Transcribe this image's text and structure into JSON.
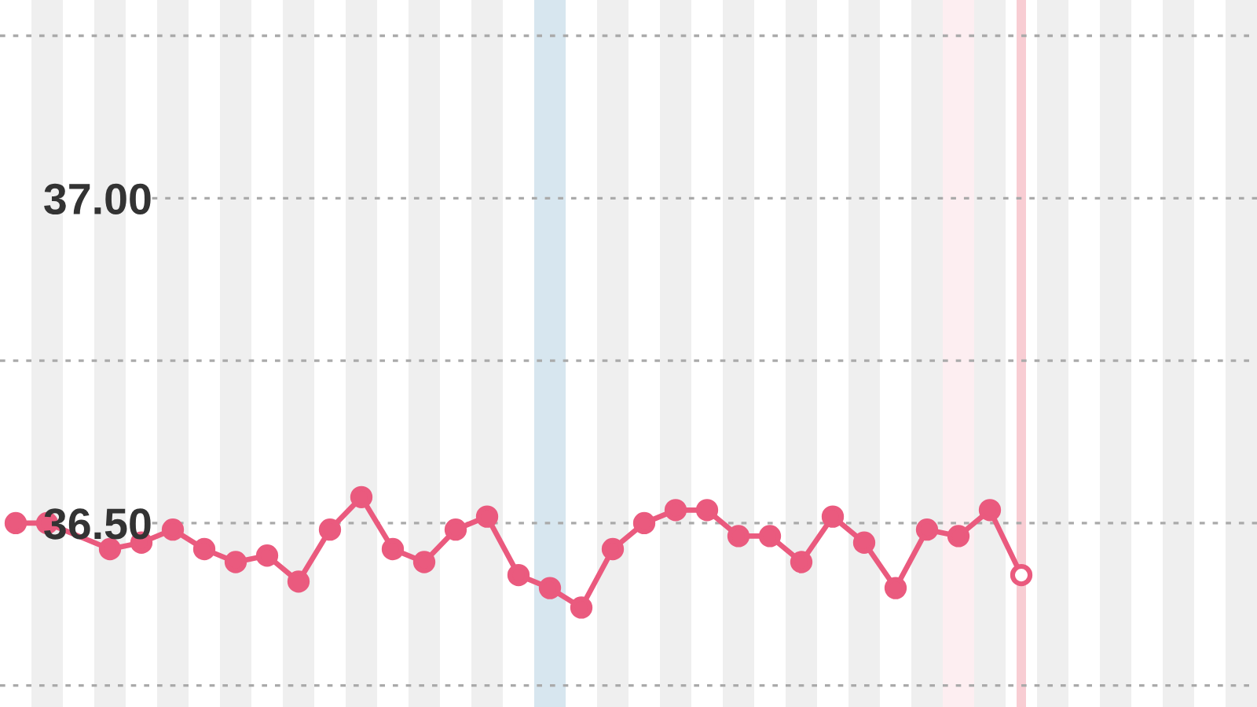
{
  "chart_data": {
    "type": "line",
    "categories": [
      null,
      null,
      null,
      null,
      null,
      null,
      null,
      null,
      null,
      null,
      null,
      null,
      null,
      null,
      null,
      null,
      null,
      null,
      null,
      null,
      null,
      null,
      null,
      null,
      null,
      null,
      null,
      null,
      null,
      null,
      null,
      null,
      null,
      null,
      null,
      null,
      null,
      null,
      null,
      null
    ],
    "series": [
      {
        "color": "#ea5a7e",
        "values": [
          36.5,
          36.5,
          null,
          36.46,
          36.47,
          36.49,
          36.46,
          36.44,
          36.45,
          36.41,
          36.49,
          36.54,
          36.46,
          36.44,
          36.49,
          36.51,
          36.42,
          36.4,
          36.37,
          36.46,
          36.5,
          36.52,
          36.52,
          36.48,
          36.48,
          36.44,
          36.51,
          36.47,
          36.4,
          36.49,
          36.48,
          36.52,
          36.42,
          null,
          null,
          null,
          null,
          null,
          null,
          null
        ]
      }
    ],
    "ylim": [
      36.217,
      37.305
    ],
    "yticks": [
      {
        "value": 36.25,
        "label": null
      },
      {
        "value": 36.5,
        "label": "36.50"
      },
      {
        "value": 36.75,
        "label": null
      },
      {
        "value": 37.0,
        "label": "37.00"
      },
      {
        "value": 37.25,
        "label": null
      }
    ],
    "grid": "y",
    "tick_labels": "y",
    "marker": "circle",
    "line_style": "solid"
  }
}
